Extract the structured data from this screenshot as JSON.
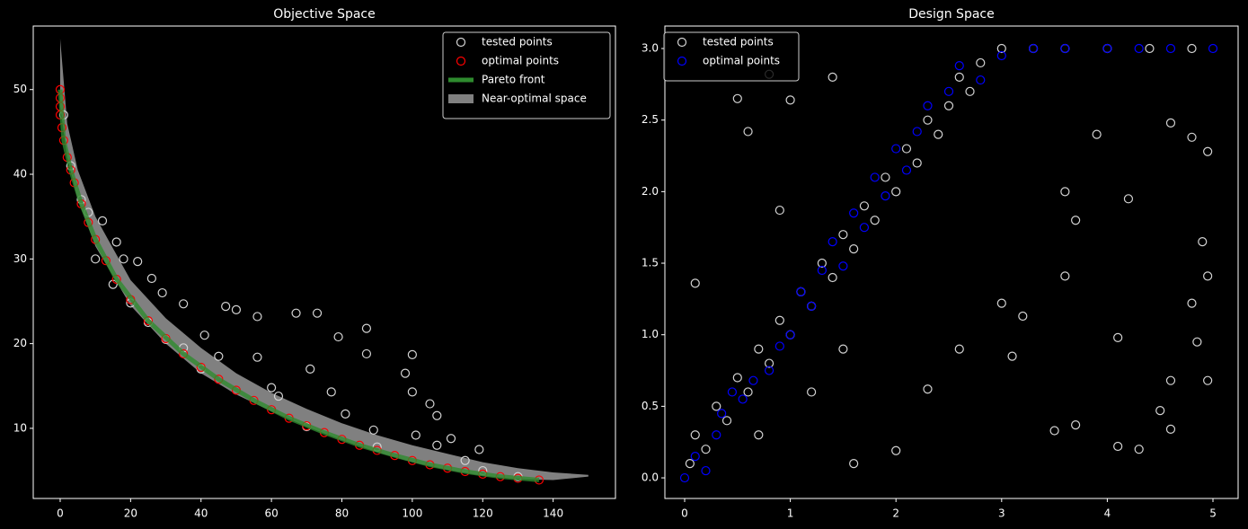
{
  "chart_data": [
    {
      "type": "scatter",
      "title": "Objective Space",
      "xlim": [
        -7.65,
        157.7
      ],
      "ylim": [
        1.72,
        57.5
      ],
      "xticks": [
        0,
        20,
        40,
        60,
        80,
        100,
        120,
        140
      ],
      "yticks": [
        10,
        20,
        30,
        40,
        50
      ],
      "legend": "upper right",
      "series": [
        {
          "name": "tested points",
          "color": "#d3d3d3",
          "x": [
            1,
            3,
            6,
            8,
            12,
            16,
            18,
            22,
            26,
            29,
            35,
            41,
            47,
            50,
            56,
            67,
            73,
            71,
            77,
            79,
            87,
            87,
            100,
            98,
            100,
            105,
            107,
            101,
            107,
            111,
            115,
            119,
            89,
            60,
            62,
            81,
            45,
            56,
            35,
            25,
            15,
            10,
            130,
            120,
            90,
            70,
            40,
            30,
            20
          ],
          "y": [
            47,
            41,
            37,
            35.5,
            34.5,
            32,
            30,
            29.7,
            27.7,
            26,
            24.7,
            21,
            24.4,
            24,
            23.2,
            23.6,
            23.6,
            17,
            14.3,
            20.8,
            21.8,
            18.8,
            18.7,
            16.5,
            14.3,
            12.9,
            11.5,
            9.2,
            8,
            8.8,
            6.2,
            7.5,
            9.8,
            14.8,
            13.8,
            11.7,
            18.5,
            18.4,
            19.5,
            22.5,
            27,
            30,
            4.3,
            5,
            7.8,
            10.2,
            17,
            20.5,
            24.8
          ]
        },
        {
          "name": "optimal points",
          "color": "#ff0000",
          "x": [
            0,
            0,
            0,
            0,
            0.5,
            1,
            2,
            3,
            4,
            6,
            8,
            10,
            13,
            16,
            20,
            25,
            30,
            35,
            40,
            45,
            50,
            55,
            60,
            65,
            70,
            75,
            80,
            85,
            90,
            95,
            100,
            105,
            110,
            115,
            120,
            125,
            130,
            136
          ],
          "y": [
            50,
            49,
            48,
            47,
            45.5,
            44,
            42,
            40.5,
            39,
            36.5,
            34.3,
            32.3,
            29.8,
            27.6,
            25.2,
            22.7,
            20.6,
            18.8,
            17.2,
            15.8,
            14.5,
            13.3,
            12.2,
            11.2,
            10.3,
            9.5,
            8.7,
            8,
            7.4,
            6.8,
            6.2,
            5.7,
            5.3,
            4.9,
            4.6,
            4.3,
            4.1,
            3.9
          ]
        },
        {
          "name": "Pareto front",
          "type": "line",
          "color": "#2e8b2e",
          "x": [
            0,
            1,
            3,
            6,
            10,
            16,
            25,
            35,
            45,
            55,
            65,
            75,
            85,
            95,
            105,
            115,
            125,
            136
          ],
          "y": [
            50,
            44,
            40.5,
            36.5,
            32.3,
            27.6,
            22.7,
            18.8,
            15.8,
            13.3,
            11.2,
            9.5,
            8,
            6.8,
            5.7,
            4.9,
            4.3,
            3.9
          ]
        },
        {
          "name": "Near-optimal space",
          "type": "area",
          "color": "#808080",
          "x": [
            0,
            2,
            5,
            10,
            20,
            30,
            40,
            50,
            60,
            70,
            80,
            90,
            100,
            110,
            120,
            130,
            140,
            150
          ],
          "y_upper": [
            56,
            46,
            40.5,
            35,
            27.5,
            23,
            19.5,
            16.5,
            14.2,
            12.3,
            10.6,
            9.2,
            8,
            7,
            6,
            5.3,
            4.8,
            4.5
          ],
          "y_lower": [
            48,
            42,
            37,
            31.5,
            24.5,
            20,
            16.5,
            14,
            12,
            10.2,
            8.6,
            7.2,
            6,
            5.1,
            4.4,
            4,
            3.9,
            4.3
          ]
        }
      ]
    },
    {
      "type": "scatter",
      "title": "Design Space",
      "xlim": [
        -0.187,
        5.238
      ],
      "ylim": [
        -0.144,
        3.157
      ],
      "xticks": [
        0,
        1,
        2,
        3,
        4,
        5
      ],
      "yticks": [
        {
          "value": 0,
          "label": "0.0"
        },
        0.5,
        {
          "value": 1,
          "label": "1.0"
        },
        1.5,
        {
          "value": 2,
          "label": "2.0"
        },
        2.5,
        {
          "value": 3,
          "label": "3.0"
        }
      ],
      "legend": "upper left",
      "series": [
        {
          "name": "tested points",
          "color": "#d3d3d3",
          "x": [
            0.05,
            0.1,
            0.2,
            0.3,
            0.4,
            0.5,
            0.6,
            0.7,
            0.8,
            0.9,
            1.0,
            1.1,
            1.2,
            1.3,
            1.4,
            1.5,
            1.6,
            1.7,
            1.8,
            1.9,
            2.0,
            2.1,
            2.2,
            2.3,
            2.4,
            2.5,
            2.6,
            2.7,
            2.8,
            3.0,
            3.3,
            3.6,
            4.0,
            4.4,
            4.8,
            0.5,
            0.6,
            0.8,
            1.0,
            1.4,
            0.9,
            2.3,
            2.6,
            3.1,
            3.5,
            3.7,
            4.1,
            4.3,
            4.5,
            4.6,
            4.6,
            4.95,
            4.85,
            4.8,
            4.95,
            4.9,
            4.95,
            4.8,
            4.6,
            4.2,
            3.6,
            3.7,
            3.9,
            3.6,
            4.1,
            0.1,
            2.0,
            1.6,
            3.0,
            3.2,
            0.7,
            1.2,
            1.5
          ],
          "y": [
            0.1,
            0.3,
            0.2,
            0.5,
            0.4,
            0.7,
            0.6,
            0.9,
            0.8,
            1.1,
            1.0,
            1.3,
            1.2,
            1.5,
            1.4,
            1.7,
            1.6,
            1.9,
            1.8,
            2.1,
            2.0,
            2.3,
            2.2,
            2.5,
            2.4,
            2.6,
            2.8,
            2.7,
            2.9,
            3.0,
            3.0,
            3.0,
            3.0,
            3.0,
            3.0,
            2.65,
            2.42,
            2.82,
            2.64,
            2.8,
            1.87,
            0.62,
            0.9,
            0.85,
            0.33,
            0.37,
            0.22,
            0.2,
            0.47,
            0.34,
            0.68,
            0.68,
            0.95,
            1.22,
            1.41,
            1.65,
            2.28,
            2.38,
            2.48,
            1.95,
            1.41,
            1.8,
            2.4,
            2.0,
            0.98,
            1.36,
            0.19,
            0.1,
            1.22,
            1.13,
            0.3,
            0.6,
            0.9
          ]
        },
        {
          "name": "optimal points",
          "color": "#0000ff",
          "x": [
            0,
            0.1,
            0.2,
            0.3,
            0.35,
            0.45,
            0.55,
            0.65,
            0.8,
            0.9,
            1.0,
            1.1,
            1.2,
            1.3,
            1.4,
            1.5,
            1.6,
            1.7,
            1.8,
            1.9,
            2.0,
            2.1,
            2.2,
            2.3,
            2.5,
            2.6,
            2.8,
            3.0,
            3.3,
            3.6,
            4.0,
            4.3,
            4.6,
            5.0
          ],
          "y": [
            0,
            0.15,
            0.05,
            0.3,
            0.45,
            0.6,
            0.55,
            0.68,
            0.75,
            0.92,
            1.0,
            1.3,
            1.2,
            1.45,
            1.65,
            1.48,
            1.85,
            1.75,
            2.1,
            1.97,
            2.3,
            2.15,
            2.42,
            2.6,
            2.7,
            2.88,
            2.78,
            2.95,
            3.0,
            3.0,
            3.0,
            3.0,
            3.0,
            3.0
          ]
        }
      ]
    }
  ]
}
